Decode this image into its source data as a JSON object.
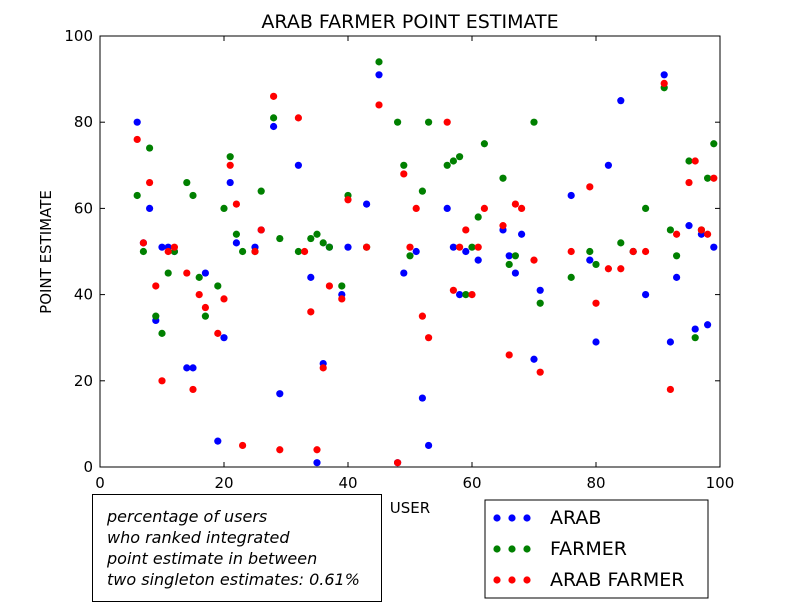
{
  "chart_data": {
    "type": "scatter",
    "title": "ARAB FARMER POINT ESTIMATE",
    "xlabel": "USER",
    "ylabel": "POINT ESTIMATE",
    "xlim": [
      0,
      100
    ],
    "ylim": [
      0,
      100
    ],
    "xticks": [
      0,
      20,
      40,
      60,
      80,
      100
    ],
    "yticks": [
      0,
      20,
      40,
      60,
      80,
      100
    ],
    "grid": false,
    "legend_position": "bottom-right",
    "series": [
      {
        "name": "ARAB",
        "color": "#0000ff",
        "points": [
          [
            6,
            80
          ],
          [
            7,
            52
          ],
          [
            8,
            60
          ],
          [
            9,
            34
          ],
          [
            10,
            51
          ],
          [
            11,
            51
          ],
          [
            12,
            50
          ],
          [
            14,
            23
          ],
          [
            15,
            23
          ],
          [
            17,
            45
          ],
          [
            19,
            6
          ],
          [
            20,
            30
          ],
          [
            21,
            66
          ],
          [
            22,
            52
          ],
          [
            25,
            51
          ],
          [
            26,
            55
          ],
          [
            28,
            79
          ],
          [
            29,
            17
          ],
          [
            32,
            70
          ],
          [
            34,
            44
          ],
          [
            35,
            1
          ],
          [
            36,
            24
          ],
          [
            37,
            51
          ],
          [
            39,
            40
          ],
          [
            40,
            51
          ],
          [
            43,
            61
          ],
          [
            45,
            91
          ],
          [
            48,
            1
          ],
          [
            49,
            45
          ],
          [
            51,
            50
          ],
          [
            52,
            16
          ],
          [
            53,
            5
          ],
          [
            56,
            60
          ],
          [
            57,
            51
          ],
          [
            58,
            40
          ],
          [
            59,
            50
          ],
          [
            61,
            48
          ],
          [
            65,
            55
          ],
          [
            66,
            49
          ],
          [
            67,
            45
          ],
          [
            68,
            54
          ],
          [
            70,
            25
          ],
          [
            71,
            41
          ],
          [
            76,
            63
          ],
          [
            79,
            48
          ],
          [
            80,
            29
          ],
          [
            82,
            70
          ],
          [
            84,
            85
          ],
          [
            86,
            50
          ],
          [
            88,
            40
          ],
          [
            91,
            91
          ],
          [
            92,
            29
          ],
          [
            93,
            44
          ],
          [
            95,
            56
          ],
          [
            96,
            32
          ],
          [
            97,
            54
          ],
          [
            98,
            33
          ],
          [
            99,
            51
          ]
        ]
      },
      {
        "name": "FARMER",
        "color": "#008000",
        "points": [
          [
            6,
            63
          ],
          [
            7,
            50
          ],
          [
            8,
            74
          ],
          [
            9,
            35
          ],
          [
            10,
            31
          ],
          [
            11,
            45
          ],
          [
            12,
            50
          ],
          [
            14,
            66
          ],
          [
            15,
            63
          ],
          [
            16,
            44
          ],
          [
            17,
            35
          ],
          [
            19,
            42
          ],
          [
            20,
            60
          ],
          [
            21,
            72
          ],
          [
            22,
            54
          ],
          [
            23,
            50
          ],
          [
            25,
            50
          ],
          [
            26,
            64
          ],
          [
            28,
            81
          ],
          [
            29,
            53
          ],
          [
            32,
            50
          ],
          [
            34,
            53
          ],
          [
            35,
            54
          ],
          [
            36,
            52
          ],
          [
            37,
            51
          ],
          [
            39,
            42
          ],
          [
            40,
            63
          ],
          [
            43,
            51
          ],
          [
            45,
            94
          ],
          [
            48,
            80
          ],
          [
            49,
            70
          ],
          [
            50,
            49
          ],
          [
            52,
            64
          ],
          [
            53,
            80
          ],
          [
            56,
            70
          ],
          [
            57,
            71
          ],
          [
            58,
            72
          ],
          [
            59,
            40
          ],
          [
            60,
            51
          ],
          [
            61,
            58
          ],
          [
            62,
            75
          ],
          [
            65,
            67
          ],
          [
            66,
            47
          ],
          [
            67,
            49
          ],
          [
            70,
            80
          ],
          [
            71,
            38
          ],
          [
            76,
            44
          ],
          [
            79,
            50
          ],
          [
            80,
            47
          ],
          [
            84,
            52
          ],
          [
            86,
            50
          ],
          [
            88,
            60
          ],
          [
            91,
            88
          ],
          [
            92,
            55
          ],
          [
            93,
            49
          ],
          [
            95,
            71
          ],
          [
            96,
            30
          ],
          [
            97,
            55
          ],
          [
            98,
            67
          ],
          [
            99,
            75
          ]
        ]
      },
      {
        "name": "ARAB FARMER",
        "color": "#ff0000",
        "points": [
          [
            6,
            76
          ],
          [
            7,
            52
          ],
          [
            8,
            66
          ],
          [
            9,
            42
          ],
          [
            10,
            20
          ],
          [
            11,
            50
          ],
          [
            12,
            51
          ],
          [
            14,
            45
          ],
          [
            15,
            18
          ],
          [
            16,
            40
          ],
          [
            17,
            37
          ],
          [
            19,
            31
          ],
          [
            20,
            39
          ],
          [
            21,
            70
          ],
          [
            22,
            61
          ],
          [
            23,
            5
          ],
          [
            25,
            50
          ],
          [
            26,
            55
          ],
          [
            28,
            86
          ],
          [
            29,
            4
          ],
          [
            32,
            81
          ],
          [
            33,
            50
          ],
          [
            34,
            36
          ],
          [
            35,
            4
          ],
          [
            36,
            23
          ],
          [
            37,
            42
          ],
          [
            39,
            39
          ],
          [
            40,
            62
          ],
          [
            43,
            51
          ],
          [
            45,
            84
          ],
          [
            48,
            1
          ],
          [
            49,
            68
          ],
          [
            50,
            51
          ],
          [
            51,
            60
          ],
          [
            52,
            35
          ],
          [
            53,
            30
          ],
          [
            56,
            80
          ],
          [
            57,
            41
          ],
          [
            58,
            51
          ],
          [
            59,
            55
          ],
          [
            60,
            40
          ],
          [
            61,
            51
          ],
          [
            62,
            60
          ],
          [
            65,
            56
          ],
          [
            66,
            26
          ],
          [
            67,
            61
          ],
          [
            68,
            60
          ],
          [
            70,
            48
          ],
          [
            71,
            22
          ],
          [
            76,
            50
          ],
          [
            79,
            65
          ],
          [
            80,
            38
          ],
          [
            82,
            46
          ],
          [
            84,
            46
          ],
          [
            86,
            50
          ],
          [
            88,
            50
          ],
          [
            91,
            89
          ],
          [
            92,
            18
          ],
          [
            93,
            54
          ],
          [
            95,
            66
          ],
          [
            96,
            71
          ],
          [
            97,
            55
          ],
          [
            98,
            54
          ],
          [
            99,
            67
          ]
        ]
      }
    ],
    "annotation": [
      "percentage of users",
      "who ranked integrated",
      "point estimate in between",
      "two singleton estimates: 0.61%"
    ]
  }
}
